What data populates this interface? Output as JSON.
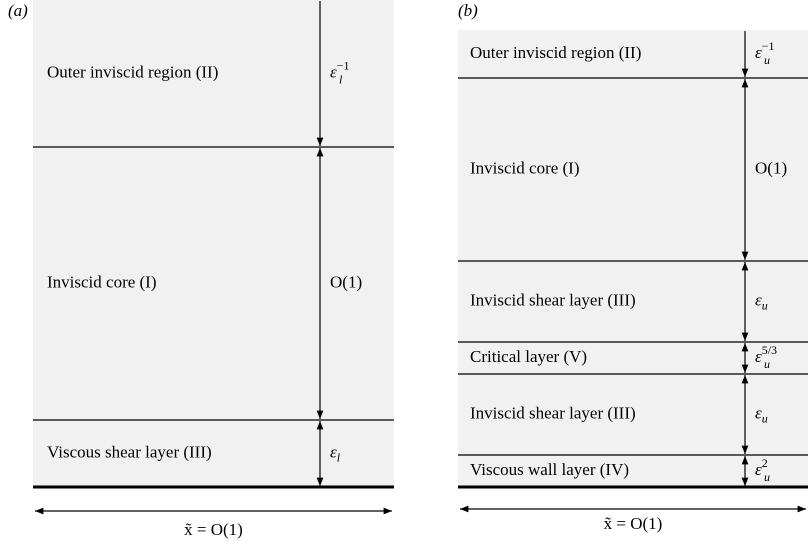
{
  "panels": [
    {
      "label": "(a)",
      "width_label": "x̃ = O(1)",
      "regions": [
        {
          "label": "Outer inviscid region (II)",
          "scale": {
            "base": "ε",
            "sub": "l",
            "sup": "−1"
          }
        },
        {
          "label": "Inviscid core (I)",
          "scale": {
            "base": "O(1)"
          }
        },
        {
          "label": "Viscous shear layer (III)",
          "scale": {
            "base": "ε",
            "sub": "l"
          }
        }
      ]
    },
    {
      "label": "(b)",
      "width_label": "x̃ = O(1)",
      "regions": [
        {
          "label": "Outer inviscid region (II)",
          "scale": {
            "base": "ε",
            "sub": "u",
            "sup": "−1"
          }
        },
        {
          "label": "Inviscid core (I)",
          "scale": {
            "base": "O(1)"
          }
        },
        {
          "label": "Inviscid shear layer (III)",
          "scale": {
            "base": "ε",
            "sub": "u"
          }
        },
        {
          "label": "Critical layer (V)",
          "scale": {
            "base": "ε",
            "sub": "u",
            "sup": "5/3"
          }
        },
        {
          "label": "Inviscid shear layer (III)",
          "scale": {
            "base": "ε",
            "sub": "u"
          }
        },
        {
          "label": "Viscous wall layer (IV)",
          "scale": {
            "base": "ε",
            "sub": "u",
            "sup": "2"
          }
        }
      ]
    }
  ]
}
